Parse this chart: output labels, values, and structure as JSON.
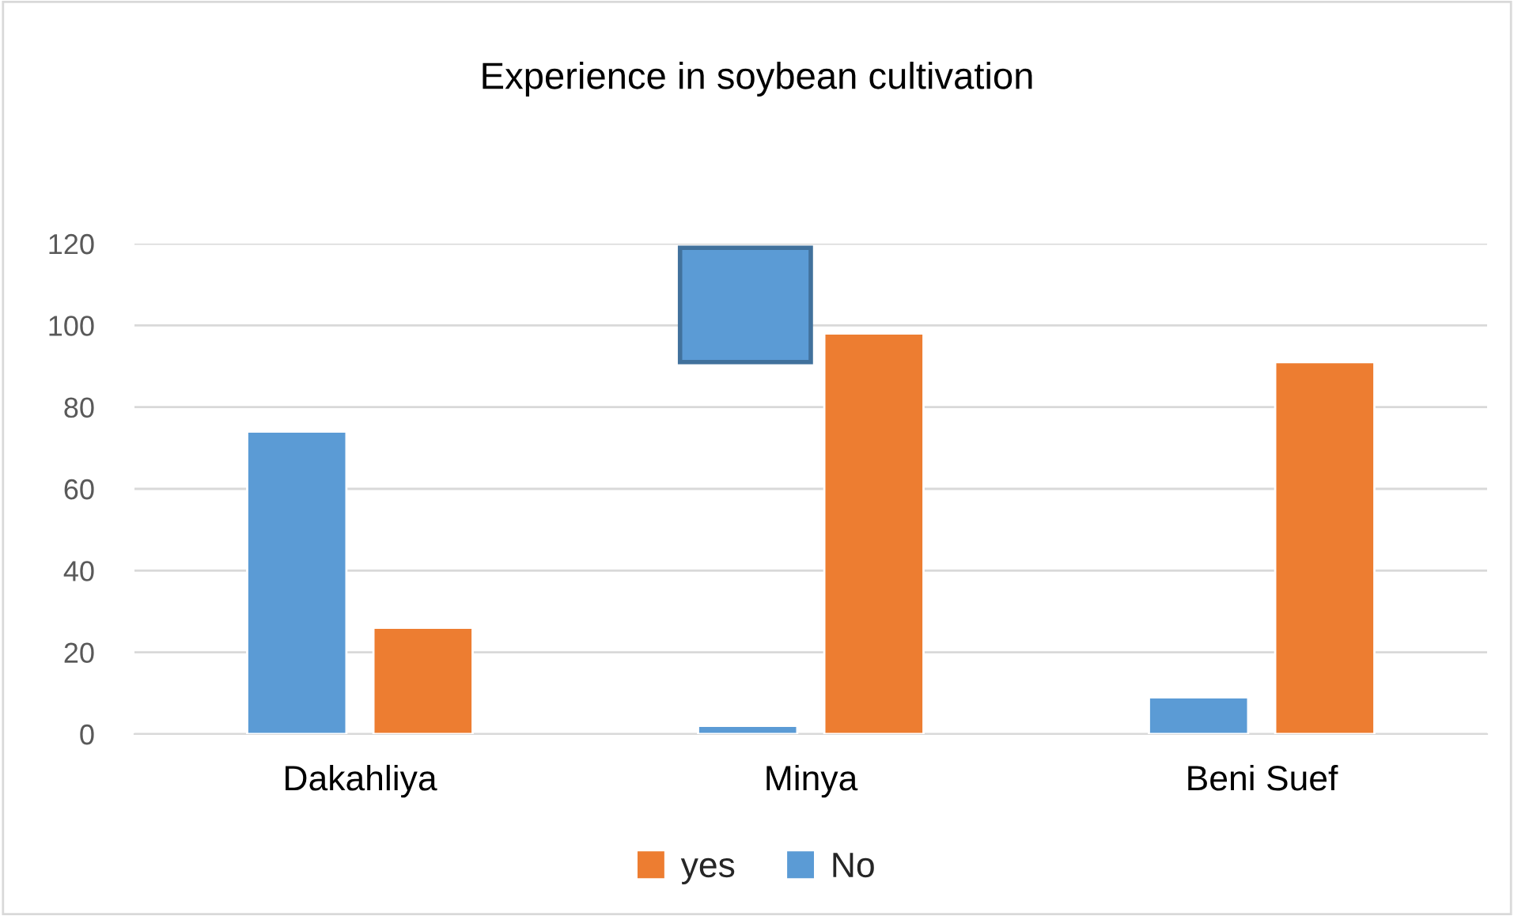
{
  "chart_data": {
    "type": "bar",
    "title": "Experience in soybean cultivation",
    "categories": [
      "Dakahliya",
      "Minya",
      "Beni Suef"
    ],
    "series": [
      {
        "name": "No",
        "color": "#5b9bd5",
        "values": [
          74,
          2,
          9
        ]
      },
      {
        "name": "yes",
        "color": "#ed7d31",
        "values": [
          26,
          98,
          91
        ]
      }
    ],
    "ylim": [
      0,
      120
    ],
    "yticks": [
      0,
      20,
      40,
      60,
      80,
      100,
      120
    ],
    "grid": "y",
    "legend": "bottom"
  }
}
